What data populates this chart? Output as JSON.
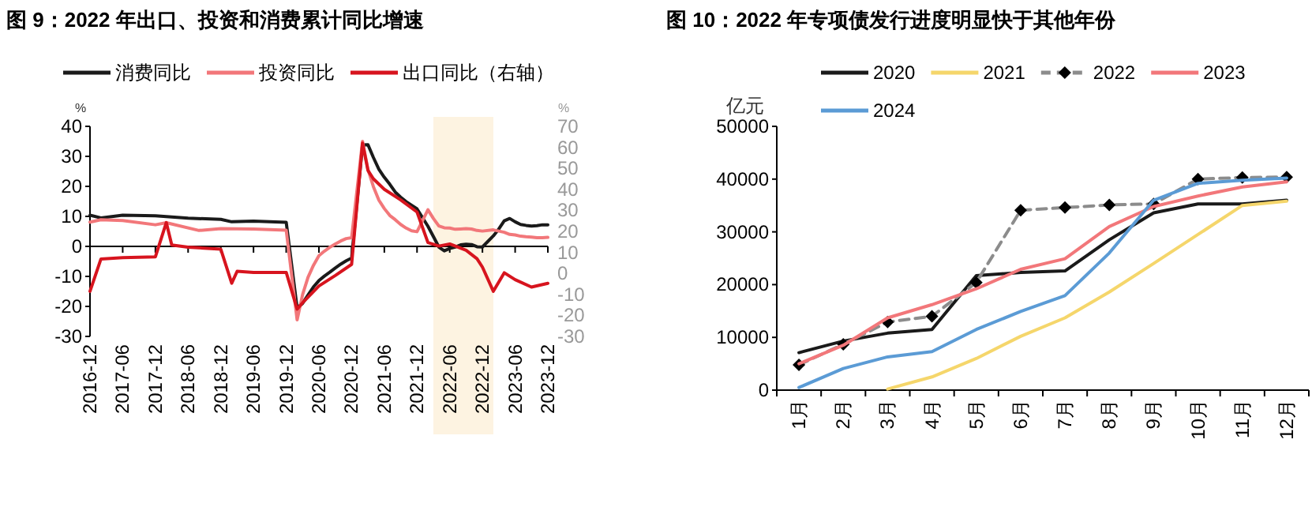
{
  "chart_data": [
    {
      "type": "line",
      "title": "图 9：2022 年出口、投资和消费累计同比增速",
      "ylabel": "%",
      "y2label": "%",
      "xlim": [
        "2016-12",
        "2023-12"
      ],
      "xticks": [
        "2016-12",
        "2017-06",
        "2017-12",
        "2018-06",
        "2018-12",
        "2019-06",
        "2019-12",
        "2020-06",
        "2020-12",
        "2021-06",
        "2021-12",
        "2022-06",
        "2022-12",
        "2023-06",
        "2023-12"
      ],
      "ylim": [
        -30,
        40
      ],
      "yticks": [
        -30,
        -20,
        -10,
        0,
        10,
        20,
        30,
        40
      ],
      "y2lim": [
        -30,
        70
      ],
      "y2ticks": [
        -30,
        -20,
        -10,
        0,
        10,
        20,
        30,
        40,
        50,
        60,
        70
      ],
      "legend": "top",
      "bands": [
        {
          "axis": "x",
          "from": "2022-03",
          "to": "2023-02",
          "color": "#fdf3e1"
        }
      ],
      "series": [
        {
          "name": "消费同比",
          "color": "#1a1a1a",
          "x": [
            "2016-12",
            "2017-02",
            "2017-06",
            "2017-12",
            "2018-06",
            "2018-12",
            "2019-02",
            "2019-06",
            "2019-12",
            "2020-02",
            "2020-03",
            "2020-04",
            "2020-05",
            "2020-06",
            "2020-07",
            "2020-08",
            "2020-09",
            "2020-10",
            "2020-11",
            "2020-12",
            "2021-02",
            "2021-03",
            "2021-04",
            "2021-05",
            "2021-06",
            "2021-07",
            "2021-08",
            "2021-09",
            "2021-10",
            "2021-11",
            "2021-12",
            "2022-02",
            "2022-03",
            "2022-04",
            "2022-05",
            "2022-06",
            "2022-07",
            "2022-08",
            "2022-09",
            "2022-10",
            "2022-11",
            "2022-12",
            "2023-02",
            "2023-03",
            "2023-04",
            "2023-05",
            "2023-06",
            "2023-07",
            "2023-08",
            "2023-09",
            "2023-10",
            "2023-11",
            "2023-12"
          ],
          "values": [
            10.4,
            9.5,
            10.4,
            10.2,
            9.4,
            9.0,
            8.2,
            8.4,
            8.0,
            -20.5,
            -19.0,
            -16.2,
            -13.5,
            -11.4,
            -9.9,
            -8.6,
            -7.2,
            -5.9,
            -4.8,
            -3.9,
            33.8,
            33.9,
            29.6,
            25.7,
            23.0,
            20.7,
            18.1,
            16.4,
            14.9,
            13.7,
            12.5,
            6.7,
            3.3,
            -0.2,
            -1.5,
            -0.7,
            -0.2,
            0.5,
            0.7,
            0.6,
            -0.1,
            -0.2,
            3.5,
            5.8,
            8.5,
            9.3,
            8.2,
            7.3,
            7.0,
            6.8,
            6.9,
            7.2,
            7.2
          ]
        },
        {
          "name": "投资同比",
          "color": "#f2777a",
          "x": [
            "2016-12",
            "2017-02",
            "2017-06",
            "2017-12",
            "2018-02",
            "2018-08",
            "2018-12",
            "2019-06",
            "2019-12",
            "2020-02",
            "2020-03",
            "2020-04",
            "2020-05",
            "2020-06",
            "2020-07",
            "2020-08",
            "2020-09",
            "2020-10",
            "2020-11",
            "2020-12",
            "2021-02",
            "2021-03",
            "2021-04",
            "2021-05",
            "2021-06",
            "2021-07",
            "2021-08",
            "2021-09",
            "2021-10",
            "2021-11",
            "2021-12",
            "2022-02",
            "2022-03",
            "2022-04",
            "2022-05",
            "2022-06",
            "2022-07",
            "2022-08",
            "2022-09",
            "2022-10",
            "2022-11",
            "2022-12",
            "2023-02",
            "2023-03",
            "2023-04",
            "2023-05",
            "2023-06",
            "2023-07",
            "2023-08",
            "2023-09",
            "2023-10",
            "2023-11",
            "2023-12"
          ],
          "values": [
            8.1,
            8.9,
            8.6,
            7.2,
            7.9,
            5.3,
            5.9,
            5.8,
            5.4,
            -24.5,
            -16.1,
            -10.3,
            -6.3,
            -3.1,
            -1.6,
            -0.3,
            0.8,
            1.8,
            2.6,
            2.9,
            35.0,
            25.6,
            19.9,
            15.4,
            12.6,
            10.3,
            8.9,
            7.3,
            6.1,
            5.2,
            4.9,
            12.2,
            9.3,
            6.8,
            6.2,
            6.1,
            5.7,
            5.8,
            5.9,
            5.8,
            5.3,
            5.1,
            5.5,
            5.1,
            4.7,
            4.0,
            3.8,
            3.4,
            3.2,
            3.1,
            2.9,
            2.9,
            3.0
          ]
        },
        {
          "name": "出口同比（右轴）",
          "color": "#d7141e",
          "axis": "y2",
          "x": [
            "2016-12",
            "2017-02",
            "2017-06",
            "2017-12",
            "2018-02",
            "2018-03",
            "2018-06",
            "2018-12",
            "2019-02",
            "2019-03",
            "2019-06",
            "2019-12",
            "2020-02",
            "2020-03",
            "2020-06",
            "2020-09",
            "2020-12",
            "2021-02",
            "2021-03",
            "2021-04",
            "2021-06",
            "2021-09",
            "2021-12",
            "2022-02",
            "2022-04",
            "2022-06",
            "2022-09",
            "2022-11",
            "2022-12",
            "2023-02",
            "2023-04",
            "2023-06",
            "2023-09",
            "2023-12"
          ],
          "values": [
            -8.5,
            6.8,
            7.5,
            7.9,
            24.2,
            13.5,
            12.5,
            11.5,
            -4.7,
            1.0,
            0.5,
            0.5,
            -17,
            -14,
            -6,
            -1,
            4.3,
            62,
            49,
            45,
            40,
            35,
            29.2,
            14.7,
            13,
            14,
            11,
            7,
            3,
            -8.5,
            0.3,
            -3,
            -6.5,
            -4.7
          ]
        }
      ]
    },
    {
      "type": "line",
      "title": "图 10：2022 年专项债发行进度明显快于其他年份",
      "ylabel": "亿元",
      "categories": [
        "1月",
        "2月",
        "3月",
        "4月",
        "5月",
        "6月",
        "7月",
        "8月",
        "9月",
        "10月",
        "11月",
        "12月"
      ],
      "ylim": [
        0,
        50000
      ],
      "yticks": [
        0,
        10000,
        20000,
        30000,
        40000,
        50000
      ],
      "legend": "top",
      "series": [
        {
          "name": "2020",
          "color": "#1a1a1a",
          "values": [
            7100,
            9300,
            10800,
            11500,
            21700,
            22300,
            22600,
            28500,
            33600,
            35300,
            35300,
            36000
          ]
        },
        {
          "name": "2021",
          "color": "#f5d66b",
          "values": [
            null,
            null,
            200,
            2500,
            6000,
            10200,
            13700,
            18600,
            24000,
            29500,
            35000,
            35800
          ]
        },
        {
          "name": "2022",
          "color": "#8c8c8c",
          "line_style": "dashed",
          "marker": "diamond",
          "values": [
            4800,
            8700,
            12900,
            14000,
            20400,
            34100,
            34600,
            35100,
            35300,
            40000,
            40300,
            40400
          ]
        },
        {
          "name": "2023",
          "color": "#f2777a",
          "values": [
            5000,
            8500,
            13700,
            16200,
            19200,
            22900,
            24900,
            31000,
            34800,
            36800,
            38500,
            39500
          ]
        },
        {
          "name": "2024",
          "color": "#5b9bd5",
          "values": [
            500,
            4100,
            6300,
            7300,
            11500,
            14900,
            17900,
            26000,
            36000,
            39200,
            39800,
            40200
          ]
        }
      ]
    }
  ]
}
